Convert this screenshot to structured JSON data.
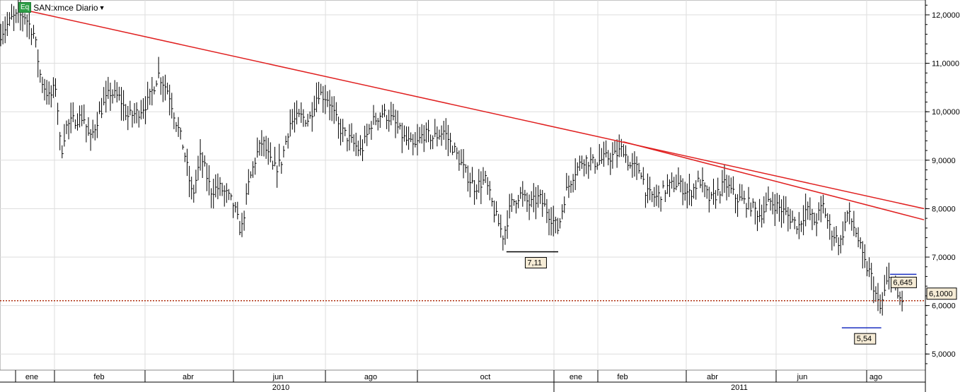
{
  "header": {
    "badge": "Eq",
    "symbol": "SAN:xmce Diario",
    "dropdown_icon": "caret-down-icon"
  },
  "chart_data": {
    "type": "ohlc-bar",
    "title": "SAN:xmce Diario",
    "ylim": [
      4.7,
      12.3
    ],
    "grid": true,
    "y_ticks": [
      "12,0000",
      "11,0000",
      "10,0000",
      "9,0000",
      "8,0000",
      "7,0000",
      "6,0000",
      "5,0000"
    ],
    "y_tick_values": [
      12,
      11,
      10,
      9,
      8,
      7,
      6,
      5
    ],
    "month_labels": [
      {
        "label": "ene",
        "date": "2010-01-01"
      },
      {
        "label": "feb",
        "date": "2010-02-01"
      },
      {
        "label": "abr",
        "date": "2010-04-01"
      },
      {
        "label": "jun",
        "date": "2010-06-01"
      },
      {
        "label": "ago",
        "date": "2010-08-01"
      },
      {
        "label": "oct",
        "date": "2010-10-01"
      },
      {
        "label": "ene",
        "date": "2011-01-01"
      },
      {
        "label": "feb",
        "date": "2011-02-01"
      },
      {
        "label": "abr",
        "date": "2011-04-01"
      },
      {
        "label": "jun",
        "date": "2011-06-01"
      },
      {
        "label": "ago",
        "date": "2011-08-01"
      }
    ],
    "year_labels": [
      "2010",
      "2011"
    ],
    "series": [
      {
        "values": [
          [
            "2009-12-21",
            11.58
          ],
          [
            "2009-12-30",
            11.94
          ],
          [
            "2010-01-08",
            12.0
          ],
          [
            "2010-01-16",
            11.58
          ],
          [
            "2010-01-21",
            10.7
          ],
          [
            "2010-01-28",
            10.27
          ],
          [
            "2010-02-02",
            10.55
          ],
          [
            "2010-02-05",
            9.1
          ],
          [
            "2010-02-08",
            9.68
          ],
          [
            "2010-02-13",
            9.83
          ],
          [
            "2010-02-19",
            9.9
          ],
          [
            "2010-02-23",
            9.4
          ],
          [
            "2010-03-01",
            9.98
          ],
          [
            "2010-03-08",
            10.4
          ],
          [
            "2010-03-15",
            10.27
          ],
          [
            "2010-03-20",
            9.9
          ],
          [
            "2010-03-27",
            9.98
          ],
          [
            "2010-04-03",
            10.2
          ],
          [
            "2010-04-10",
            10.78
          ],
          [
            "2010-04-17",
            10.4
          ],
          [
            "2010-04-21",
            9.9
          ],
          [
            "2010-04-27",
            9.25
          ],
          [
            "2010-05-03",
            8.23
          ],
          [
            "2010-05-09",
            9.1
          ],
          [
            "2010-05-16",
            8.37
          ],
          [
            "2010-05-22",
            8.44
          ],
          [
            "2010-05-27",
            8.3
          ],
          [
            "2010-06-01",
            8.08
          ],
          [
            "2010-06-06",
            7.5
          ],
          [
            "2010-06-11",
            8.52
          ],
          [
            "2010-06-16",
            9.1
          ],
          [
            "2010-06-20",
            9.4
          ],
          [
            "2010-06-27",
            8.8
          ],
          [
            "2010-07-02",
            8.94
          ],
          [
            "2010-07-08",
            9.76
          ],
          [
            "2010-07-15",
            9.9
          ],
          [
            "2010-07-21",
            9.83
          ],
          [
            "2010-07-27",
            10.4
          ],
          [
            "2010-08-03",
            10.27
          ],
          [
            "2010-08-10",
            9.68
          ],
          [
            "2010-08-18",
            9.4
          ],
          [
            "2010-08-25",
            9.17
          ],
          [
            "2010-09-01",
            9.76
          ],
          [
            "2010-09-08",
            9.98
          ],
          [
            "2010-09-15",
            9.83
          ],
          [
            "2010-09-22",
            9.46
          ],
          [
            "2010-09-29",
            9.25
          ],
          [
            "2010-10-05",
            9.54
          ],
          [
            "2010-10-12",
            9.46
          ],
          [
            "2010-10-19",
            9.6
          ],
          [
            "2010-10-27",
            9.17
          ],
          [
            "2010-11-03",
            8.73
          ],
          [
            "2010-11-09",
            8.44
          ],
          [
            "2010-11-16",
            8.59
          ],
          [
            "2010-11-22",
            7.93
          ],
          [
            "2010-11-28",
            7.42
          ],
          [
            "2010-12-03",
            8.08
          ],
          [
            "2010-12-09",
            8.3
          ],
          [
            "2010-12-16",
            8.08
          ],
          [
            "2010-12-22",
            8.23
          ],
          [
            "2010-12-28",
            7.93
          ],
          [
            "2011-01-04",
            7.57
          ],
          [
            "2011-01-09",
            8.3
          ],
          [
            "2011-01-15",
            8.73
          ],
          [
            "2011-01-22",
            9.03
          ],
          [
            "2011-01-29",
            8.94
          ],
          [
            "2011-02-05",
            9.03
          ],
          [
            "2011-02-12",
            9.1
          ],
          [
            "2011-02-17",
            9.25
          ],
          [
            "2011-02-21",
            8.88
          ],
          [
            "2011-02-28",
            8.8
          ],
          [
            "2011-03-04",
            8.3
          ],
          [
            "2011-03-11",
            8.23
          ],
          [
            "2011-03-19",
            8.44
          ],
          [
            "2011-03-26",
            8.52
          ],
          [
            "2011-04-03",
            8.3
          ],
          [
            "2011-04-10",
            8.59
          ],
          [
            "2011-04-17",
            8.15
          ],
          [
            "2011-04-27",
            8.52
          ],
          [
            "2011-05-04",
            8.23
          ],
          [
            "2011-05-14",
            8.08
          ],
          [
            "2011-05-21",
            7.86
          ],
          [
            "2011-05-28",
            8.15
          ],
          [
            "2011-06-04",
            8.0
          ],
          [
            "2011-06-11",
            7.79
          ],
          [
            "2011-06-16",
            7.64
          ],
          [
            "2011-06-21",
            8.0
          ],
          [
            "2011-06-27",
            7.71
          ],
          [
            "2011-07-02",
            8.08
          ],
          [
            "2011-07-07",
            7.57
          ],
          [
            "2011-07-14",
            7.28
          ],
          [
            "2011-07-19",
            7.93
          ],
          [
            "2011-07-25",
            7.5
          ],
          [
            "2011-07-30",
            6.91
          ],
          [
            "2011-08-04",
            6.62
          ],
          [
            "2011-08-10",
            5.89
          ],
          [
            "2011-08-15",
            6.47
          ],
          [
            "2011-08-18",
            6.62
          ],
          [
            "2011-08-22",
            6.18
          ],
          [
            "2011-08-26",
            6.1
          ]
        ]
      }
    ],
    "trendlines": [
      {
        "from": [
          "2010-01-08",
          12.1
        ],
        "to": [
          "2011-09-09",
          8.0
        ],
        "color": "#e02020"
      },
      {
        "from": [
          "2011-02-17",
          9.38
        ],
        "to": [
          "2011-09-09",
          7.77
        ],
        "color": "#e02020"
      }
    ],
    "levels": [
      {
        "label": "7,11",
        "value": 7.11,
        "from": "2010-11-30",
        "to": "2011-01-04",
        "color": "#000000"
      },
      {
        "label": "5,54",
        "value": 5.54,
        "from": "2011-07-15",
        "to": "2011-08-11",
        "color": "#1a2fc0"
      },
      {
        "label": "6,645",
        "value": 6.645,
        "from": "2011-08-17",
        "to": "2011-09-04",
        "color": "#1a2fc0"
      }
    ],
    "last_price": {
      "label": "6,1000",
      "value": 6.1,
      "color": "#b03010"
    }
  }
}
